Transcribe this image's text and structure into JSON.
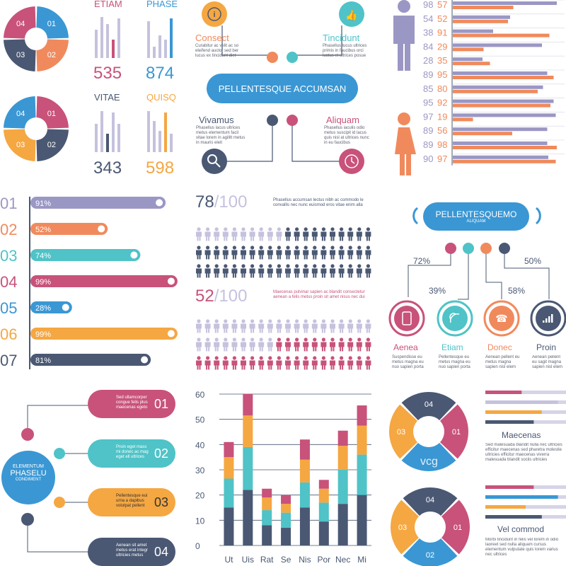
{
  "colors": {
    "purple": "#9b97c4",
    "orange": "#f08a5d",
    "teal": "#4fc3c7",
    "pink": "#c8527a",
    "blue": "#3a97d4",
    "yellow": "#f5a742",
    "dark": "#4a5873",
    "lav": "#c5c2de",
    "red": "#e05a4f"
  },
  "topleft": {
    "labels": [
      "ETIAM",
      "PHASE",
      "VITAE",
      "QUISQ"
    ],
    "values": [
      "535",
      "874",
      "343",
      "598"
    ],
    "ring1": [
      "04",
      "01",
      "03",
      "02"
    ],
    "ring2": [
      "04",
      "01",
      "03",
      "02"
    ]
  },
  "topmid": {
    "consect": "Consect",
    "tincidunt": "Tincidunt",
    "center": "PELLENTESQUE ACCUMSAN",
    "vivamus": "Vivamus",
    "aliquam": "Aliquam",
    "body_consect": "Curabitur ac velit ac so eleifend auctor sed ber lucus ex tincidunt diet",
    "body_tincidunt": "Phasellus lucus ultrices primis in faucibus orci luctus et ultrices posue",
    "body_vivamus": "Phasellus lacus ultrices metus elementum facil vitae lorem in agilitt metus in mauris eleit",
    "body_aliquam": "Phasellus iaculis odio metus suscipit id lacus quis nisl at ultrices nunc in eu faucibus"
  },
  "topright": {
    "pairs": [
      [
        "98",
        "57"
      ],
      [
        "54",
        "52"
      ],
      [
        "38",
        "91"
      ],
      [
        "84",
        "29"
      ],
      [
        "28",
        "35"
      ],
      [
        "89",
        "95"
      ],
      [
        "85",
        "80"
      ],
      [
        "95",
        "92"
      ],
      [
        "97",
        "19"
      ],
      [
        "89",
        "56"
      ],
      [
        "89",
        "98"
      ],
      [
        "90",
        "97"
      ]
    ],
    "purple_vals": [
      0.98,
      0.54,
      0.38,
      0.84,
      0.28,
      0.89,
      0.85,
      0.95,
      0.97,
      0.89,
      0.89,
      0.9
    ],
    "orange_vals": [
      0.57,
      0.52,
      0.91,
      0.29,
      0.35,
      0.95,
      0.8,
      0.92,
      0.19,
      0.56,
      0.98,
      0.97
    ]
  },
  "midleft": {
    "rows": [
      {
        "n": "01",
        "pct": "91%",
        "v": 0.91
      },
      {
        "n": "02",
        "pct": "52%",
        "v": 0.52
      },
      {
        "n": "03",
        "pct": "74%",
        "v": 0.74
      },
      {
        "n": "04",
        "pct": "99%",
        "v": 0.99
      },
      {
        "n": "05",
        "pct": "28%",
        "v": 0.28
      },
      {
        "n": "06",
        "pct": "99%",
        "v": 0.99
      },
      {
        "n": "07",
        "pct": "81%",
        "v": 0.81
      }
    ]
  },
  "midcenter": {
    "score1": "78",
    "score2": "52",
    "denom": "/100",
    "note1": "Phasellus accumsan lectus nibh ac commodo le convallis nec nunc euismod eros vitae enim alla",
    "note2": "Maecenas pulvinar sapien ac blandit consectetur aenean a felis metus proin sit amet nisus nec dui"
  },
  "midright": {
    "title": "PELLENTESQUEMO",
    "sub": "ALIQUAM",
    "pcts": [
      "72%",
      "39%",
      "58%",
      "50%"
    ],
    "names": [
      "Aenea",
      "Etiam",
      "Donec",
      "Proin"
    ],
    "bodies": [
      "Suspendisse eu metus magna eu nuo sapien porta",
      "Pellentesque eu metus magna eu nuo sapien porta",
      "Aenean pellent eu metus magna sapien nisl elem",
      "Aenean pellent eu sagit magna sapien nisl elem"
    ]
  },
  "botleft": {
    "center": [
      "ELEMENTUM",
      "PHASELU",
      "CONDIMENT"
    ],
    "items": [
      {
        "text": "Sed ullamcorper congue felis plus maecenas egeto",
        "n": "01"
      },
      {
        "text": "Proin eget mass mi donec ac mag eget ell ultrices",
        "n": "02"
      },
      {
        "text": "Pellentesque eui urna a dapibus volutpat pellent",
        "n": "03"
      },
      {
        "text": "Aenean sit amet metus erat integr ultricies metus",
        "n": "04"
      }
    ]
  },
  "chart_data": {
    "type": "bar",
    "categories": [
      "Ut",
      "Uis",
      "Rat",
      "Se",
      "Nis",
      "Por",
      "Nec",
      "Mi"
    ],
    "ylim": [
      0,
      60
    ],
    "yticks": [
      "60",
      "50",
      "40",
      "30",
      "20",
      "10",
      "0"
    ],
    "series": [
      {
        "values": [
          15,
          22,
          8,
          7,
          15,
          9.5,
          16.5,
          20
        ]
      },
      {
        "values": [
          11.5,
          17,
          6,
          6,
          10,
          7.5,
          13.5,
          16
        ]
      },
      {
        "values": [
          8.5,
          12.5,
          5,
          3.5,
          9,
          5.5,
          9.5,
          11.5
        ]
      },
      {
        "values": [
          6,
          8.5,
          3.5,
          3.5,
          8,
          3.5,
          6,
          8
        ]
      }
    ]
  },
  "botright": {
    "ring_top": [
      "04",
      "01",
      "03"
    ],
    "ring_bot": [
      "04",
      "01",
      "03",
      "02"
    ],
    "title1": "Maecenas",
    "title2": "Vel commod",
    "body1": "Sed malesuada blandit nulla nec ultricies efficitur maecenas sed pharetra molestie ultricies efficitur maecenas viverra malesuada blandit sociis ultricies",
    "body2": "Morbi tincidunt in felis vel lorem in odio laoreet sed nulla aliquam cursus elementum vulputate quis lorem varius nec ultrices",
    "watermark": "vcg"
  }
}
